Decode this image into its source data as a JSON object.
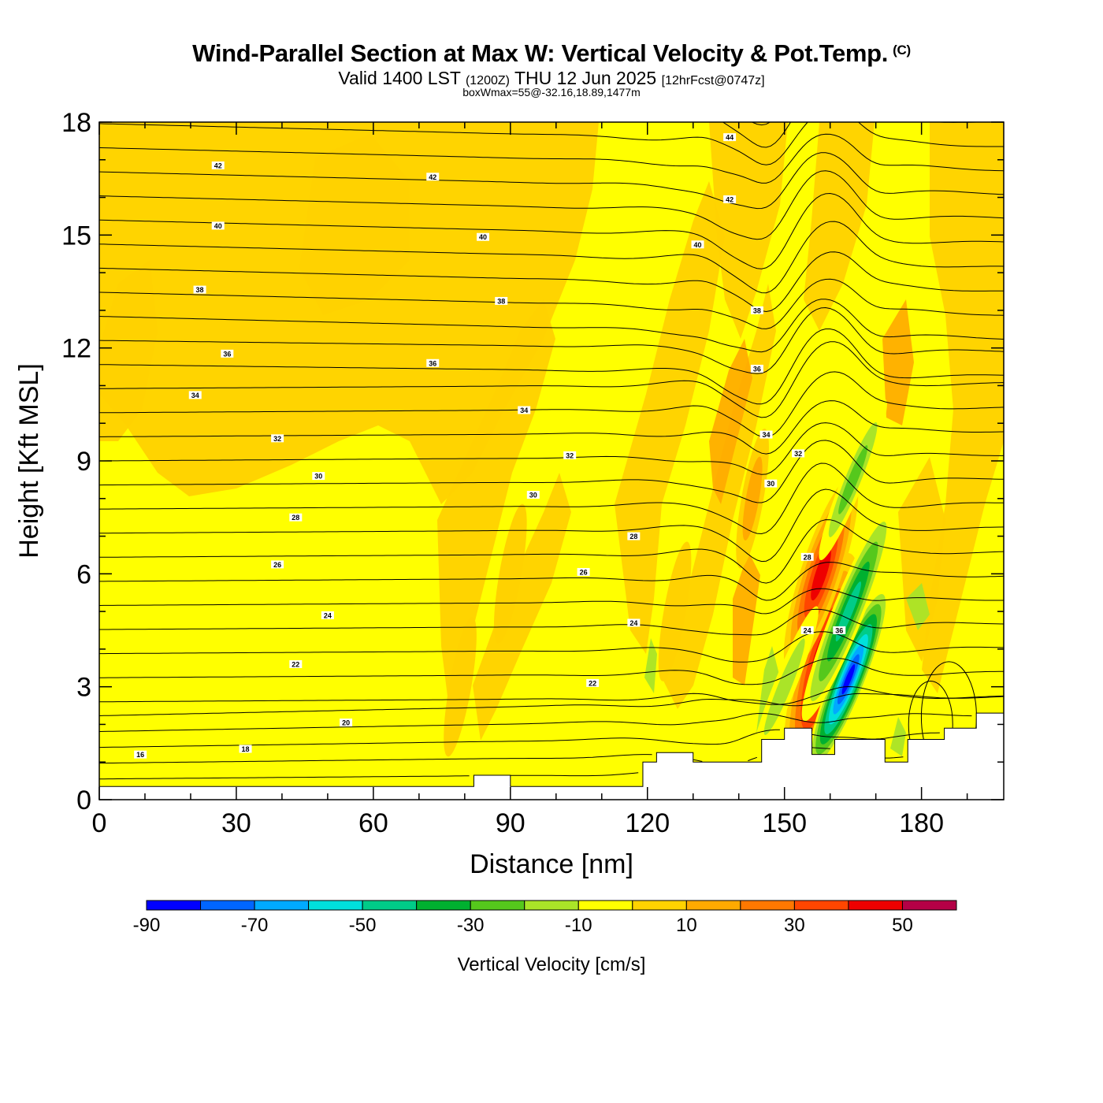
{
  "header": {
    "title": "Wind-Parallel Section at Max W: Vertical Velocity & Pot.Temp.",
    "copyright": "(C)",
    "subtitle_main": "Valid 1400 LST",
    "subtitle_utc": "(1200Z)",
    "subtitle_date": "THU 12 Jun 2025",
    "subtitle_fcst": "[12hrFcst@0747z]",
    "subtitle2": "boxWmax=55@-32.16,18.89,1477m"
  },
  "chart_data": {
    "type": "heatmap",
    "title": "Wind-Parallel Section at Max W: Vertical Velocity & Pot.Temp.",
    "xlabel": "Distance [nm]",
    "ylabel": "Height [Kft MSL]",
    "xlim": [
      0,
      198
    ],
    "ylim": [
      0,
      18
    ],
    "x_ticks": [
      0,
      30,
      60,
      90,
      120,
      150,
      180
    ],
    "y_ticks": [
      0,
      3,
      6,
      9,
      12,
      15,
      18
    ],
    "colorbar": {
      "title": "Vertical Velocity [cm/s]",
      "bounds": [
        -90,
        -80,
        -70,
        -60,
        -50,
        -40,
        -30,
        -20,
        -10,
        0,
        10,
        20,
        30,
        40,
        50,
        60
      ],
      "labels": [
        "-90",
        "-70",
        "-50",
        "-30",
        "-10",
        "10",
        "30",
        "50"
      ],
      "colors": [
        "#0000ff",
        "#0066ff",
        "#00aaff",
        "#00e0dc",
        "#00cc88",
        "#00b030",
        "#55c81c",
        "#aae428",
        "#ffff00",
        "#ffd200",
        "#ffaa00",
        "#ff7800",
        "#ff4600",
        "#ee0000",
        "#b40046"
      ]
    },
    "isentrope_labels": [
      {
        "x": 9,
        "y": 1.2,
        "label": "16"
      },
      {
        "x": 32,
        "y": 1.35,
        "label": "18"
      },
      {
        "x": 54,
        "y": 2.05,
        "label": "20"
      },
      {
        "x": 43,
        "y": 3.6,
        "label": "22"
      },
      {
        "x": 108,
        "y": 3.1,
        "label": "22"
      },
      {
        "x": 50,
        "y": 4.9,
        "label": "24"
      },
      {
        "x": 117,
        "y": 4.7,
        "label": "24"
      },
      {
        "x": 155,
        "y": 4.5,
        "label": "24"
      },
      {
        "x": 39,
        "y": 6.25,
        "label": "26"
      },
      {
        "x": 106,
        "y": 6.05,
        "label": "26"
      },
      {
        "x": 43,
        "y": 7.5,
        "label": "28"
      },
      {
        "x": 117,
        "y": 7.0,
        "label": "28"
      },
      {
        "x": 155,
        "y": 6.45,
        "label": "28"
      },
      {
        "x": 48,
        "y": 8.6,
        "label": "30"
      },
      {
        "x": 95,
        "y": 8.1,
        "label": "30"
      },
      {
        "x": 147,
        "y": 8.4,
        "label": "30"
      },
      {
        "x": 39,
        "y": 9.6,
        "label": "32"
      },
      {
        "x": 103,
        "y": 9.15,
        "label": "32"
      },
      {
        "x": 153,
        "y": 9.2,
        "label": "32"
      },
      {
        "x": 21,
        "y": 10.75,
        "label": "34"
      },
      {
        "x": 93,
        "y": 10.35,
        "label": "34"
      },
      {
        "x": 146,
        "y": 9.7,
        "label": "34"
      },
      {
        "x": 28,
        "y": 11.85,
        "label": "36"
      },
      {
        "x": 73,
        "y": 11.6,
        "label": "36"
      },
      {
        "x": 144,
        "y": 11.45,
        "label": "36"
      },
      {
        "x": 162,
        "y": 4.5,
        "label": "36"
      },
      {
        "x": 22,
        "y": 13.55,
        "label": "38"
      },
      {
        "x": 88,
        "y": 13.25,
        "label": "38"
      },
      {
        "x": 144,
        "y": 13.0,
        "label": "38"
      },
      {
        "x": 26,
        "y": 15.25,
        "label": "40"
      },
      {
        "x": 84,
        "y": 14.95,
        "label": "40"
      },
      {
        "x": 131,
        "y": 14.75,
        "label": "40"
      },
      {
        "x": 26,
        "y": 16.85,
        "label": "42"
      },
      {
        "x": 73,
        "y": 16.55,
        "label": "42"
      },
      {
        "x": 138,
        "y": 15.95,
        "label": "42"
      },
      {
        "x": 138,
        "y": 17.6,
        "label": "44"
      }
    ],
    "updrafts": [
      {
        "x": 158,
        "y": 3.5,
        "peak": 55
      },
      {
        "x": 158,
        "y": 6.0,
        "peak": 45
      },
      {
        "x": 143,
        "y": 8.0,
        "peak": 20
      },
      {
        "x": 126,
        "y": 5.0,
        "peak": 12
      },
      {
        "x": 90,
        "y": 6.0,
        "peak": 8
      },
      {
        "x": 79,
        "y": 3.0,
        "peak": 8
      }
    ],
    "downdrafts": [
      {
        "x": 164,
        "y": 3.2,
        "peak": -85
      },
      {
        "x": 164,
        "y": 5.0,
        "peak": -45
      },
      {
        "x": 165,
        "y": 8.5,
        "peak": -25
      },
      {
        "x": 150,
        "y": 3.0,
        "peak": -22
      }
    ]
  }
}
